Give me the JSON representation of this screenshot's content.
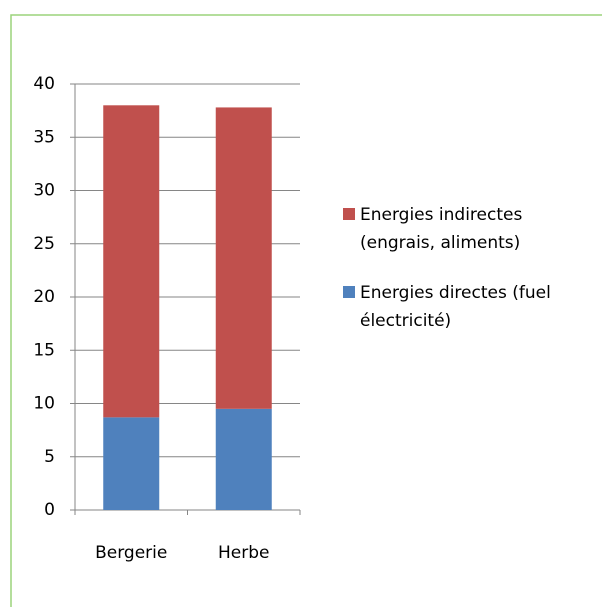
{
  "chart_data": {
    "type": "stacked_bar",
    "categories": [
      "Bergerie",
      "Herbe"
    ],
    "series": [
      {
        "name": "Energies directes (fuel électricité)",
        "color": "#4f81bd",
        "values": [
          8.7,
          9.5
        ]
      },
      {
        "name": "Energies indirectes (engrais, aliments)",
        "color": "#c0504d",
        "values": [
          29.3,
          28.3
        ]
      }
    ],
    "ylim": [
      0,
      40
    ],
    "yticks": [
      0,
      5,
      10,
      15,
      20,
      25,
      30,
      35,
      40
    ],
    "grid": true,
    "legend": "right"
  }
}
